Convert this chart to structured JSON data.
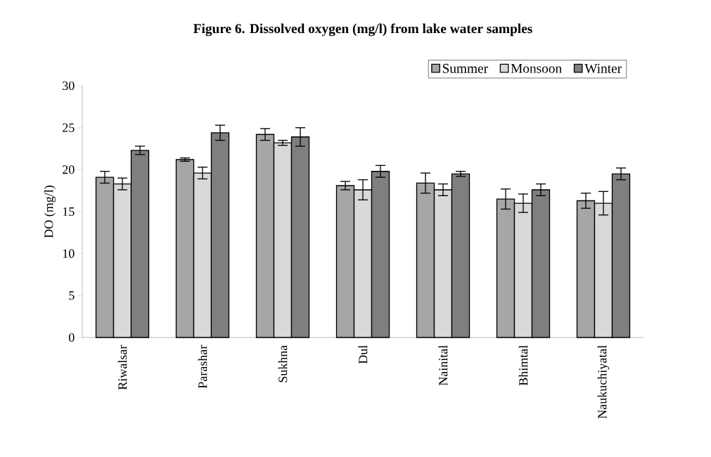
{
  "chart_data": {
    "type": "bar",
    "title": "Figure 6. Dissolved oxygen (mg/l) from lake water samples",
    "ylabel": "DO (mg/l)",
    "categories": [
      "Riwalsar",
      "Parashar",
      "Sukhna",
      "Dul",
      "Nainital",
      "Bhimtal",
      "Naukuchiyatal"
    ],
    "series": [
      {
        "name": "Summer",
        "color": "#a6a6a6",
        "values": [
          19.1,
          21.2,
          24.2,
          18.1,
          18.4,
          16.5,
          16.3
        ],
        "errors": [
          0.7,
          0.2,
          0.7,
          0.5,
          1.2,
          1.2,
          0.9
        ]
      },
      {
        "name": "Monsoon",
        "color": "#d9d9d9",
        "values": [
          18.3,
          19.6,
          23.2,
          17.6,
          17.6,
          16.0,
          16.0
        ],
        "errors": [
          0.7,
          0.7,
          0.3,
          1.2,
          0.7,
          1.1,
          1.4
        ]
      },
      {
        "name": "Winter",
        "color": "#7f7f7f",
        "values": [
          22.3,
          24.4,
          23.9,
          19.8,
          19.5,
          17.6,
          19.5
        ],
        "errors": [
          0.5,
          0.9,
          1.1,
          0.7,
          0.3,
          0.7,
          0.7
        ]
      }
    ],
    "ylim": [
      0,
      30
    ],
    "yticks": [
      0,
      5,
      10,
      15,
      20,
      25,
      30
    ],
    "grid": false,
    "legend": "top right"
  }
}
